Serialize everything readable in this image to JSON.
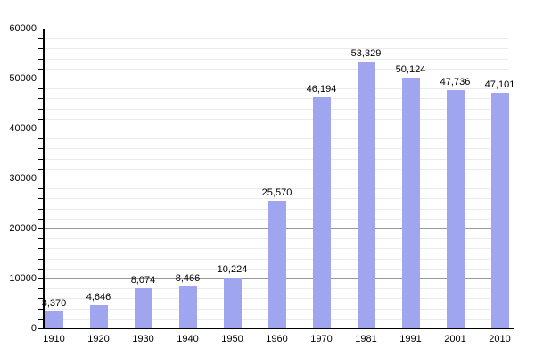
{
  "chart_data": {
    "type": "bar",
    "title": "",
    "xlabel": "",
    "ylabel": "",
    "categories": [
      "1910",
      "1920",
      "1930",
      "1940",
      "1950",
      "1960",
      "1970",
      "1981",
      "1991",
      "2001",
      "2010"
    ],
    "values": [
      3370,
      4646,
      8074,
      8466,
      10224,
      25570,
      46194,
      53329,
      50124,
      47736,
      47101
    ],
    "value_labels": [
      "3,370",
      "4,646",
      "8,074",
      "8,466",
      "10,224",
      "25,570",
      "46,194",
      "53,329",
      "50,124",
      "47,736",
      "47,101"
    ],
    "ylim": [
      0,
      60000
    ],
    "y_major_step": 10000,
    "y_minor_step": 2000,
    "y_tick_labels": [
      "0",
      "10000",
      "20000",
      "30000",
      "40000",
      "50000",
      "60000"
    ],
    "grid": "horizontal-major-and-minor",
    "legend": "none",
    "colors": {
      "bar_fill": "#9FA6EF",
      "major_gridline": "#999999",
      "minor_gridline": "#EBEBEB",
      "axis_line": "#000000",
      "text": "#000000",
      "background": "#FFFFFF"
    }
  }
}
